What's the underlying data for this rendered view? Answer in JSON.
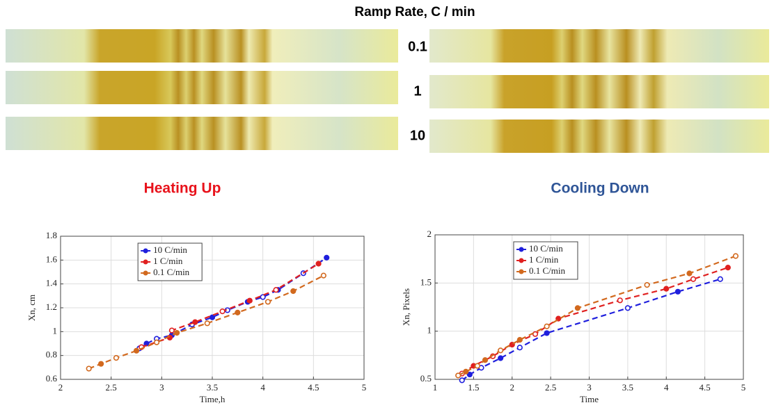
{
  "header": {
    "title": "Ramp Rate, C / min",
    "rates": [
      "0.1",
      "1",
      "10"
    ],
    "left_caption": "Heating Up",
    "right_caption": "Cooling Down"
  },
  "chart_data": [
    {
      "type": "line",
      "xlabel": "Time,h",
      "ylabel": "Xn, cm",
      "xlim": [
        2,
        5
      ],
      "ylim": [
        0.6,
        1.8
      ],
      "xticks": [
        2,
        2.5,
        3,
        3.5,
        4,
        4.5,
        5
      ],
      "yticks": [
        0.6,
        0.8,
        1,
        1.2,
        1.4,
        1.6,
        1.8
      ],
      "grid": true,
      "legend": "top-left",
      "series": [
        {
          "name": "10 C/min",
          "color": "#1f1fdd",
          "x": [
            2.78,
            2.85,
            2.95,
            3.1,
            3.3,
            3.5,
            3.65,
            3.85,
            4.0,
            4.15,
            4.4,
            4.63
          ],
          "values": [
            0.86,
            0.9,
            0.94,
            0.97,
            1.06,
            1.12,
            1.18,
            1.25,
            1.29,
            1.35,
            1.49,
            1.62
          ]
        },
        {
          "name": "1 C/min",
          "color": "#e02020",
          "x": [
            2.8,
            3.08,
            3.1,
            3.33,
            3.6,
            3.87,
            4.13,
            4.55
          ],
          "values": [
            0.87,
            0.95,
            1.01,
            1.08,
            1.17,
            1.26,
            1.35,
            1.57
          ]
        },
        {
          "name": "0.1 C/min",
          "color": "#d2691e",
          "x": [
            2.28,
            2.4,
            2.55,
            2.75,
            2.95,
            3.15,
            3.45,
            3.75,
            4.05,
            4.3,
            4.6
          ],
          "values": [
            0.69,
            0.73,
            0.78,
            0.84,
            0.91,
            0.99,
            1.07,
            1.16,
            1.25,
            1.34,
            1.47
          ]
        }
      ]
    },
    {
      "type": "line",
      "xlabel": "Time",
      "ylabel": "Xn, Pixels",
      "xlim": [
        1,
        5
      ],
      "ylim": [
        0.5,
        2
      ],
      "xticks": [
        1,
        1.5,
        2,
        2.5,
        3,
        3.5,
        4,
        4.5,
        5
      ],
      "yticks": [
        0.5,
        1,
        1.5,
        2
      ],
      "grid": true,
      "legend": "top-left",
      "series": [
        {
          "name": "10 C/min",
          "color": "#1f1fdd",
          "x": [
            1.35,
            1.45,
            1.6,
            1.85,
            2.1,
            2.45,
            3.5,
            4.15,
            4.7
          ],
          "values": [
            0.49,
            0.55,
            0.62,
            0.72,
            0.83,
            0.98,
            1.24,
            1.41,
            1.54
          ]
        },
        {
          "name": "1 C/min",
          "color": "#e02020",
          "x": [
            1.35,
            1.5,
            1.75,
            2.0,
            2.3,
            2.6,
            3.4,
            4.0,
            4.35,
            4.8
          ],
          "values": [
            0.56,
            0.64,
            0.74,
            0.86,
            0.97,
            1.13,
            1.32,
            1.44,
            1.54,
            1.66
          ]
        },
        {
          "name": "0.1 C/min",
          "color": "#d2691e",
          "x": [
            1.3,
            1.4,
            1.55,
            1.65,
            1.85,
            2.1,
            2.45,
            2.85,
            3.75,
            4.3,
            4.9
          ],
          "values": [
            0.54,
            0.58,
            0.64,
            0.7,
            0.8,
            0.91,
            1.05,
            1.24,
            1.48,
            1.6,
            1.78
          ]
        }
      ]
    }
  ]
}
